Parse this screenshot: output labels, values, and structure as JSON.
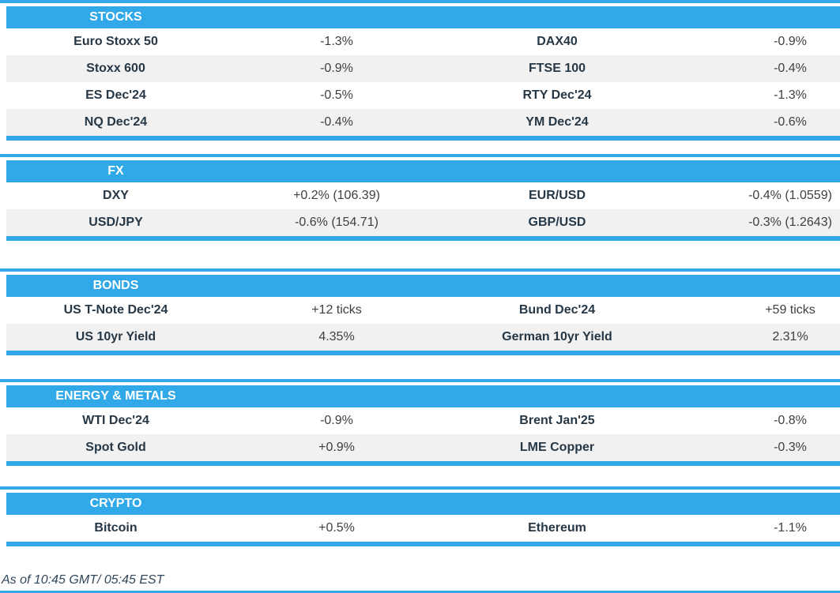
{
  "colors": {
    "accent": "#31A9E8",
    "row_alt": "#F1F1F1",
    "name_text": "#263746",
    "value_text": "#3F3F3F",
    "header_text": "#FFFFFF",
    "footer_text": "#33475B"
  },
  "sections": [
    {
      "title": "STOCKS",
      "rows": [
        [
          "Euro Stoxx 50",
          "-1.3%",
          "DAX40",
          "-0.9%"
        ],
        [
          "Stoxx 600",
          "-0.9%",
          "FTSE 100",
          "-0.4%"
        ],
        [
          "ES Dec'24",
          "-0.5%",
          "RTY Dec'24",
          "-1.3%"
        ],
        [
          "NQ Dec'24",
          "-0.4%",
          "YM Dec'24",
          "-0.6%"
        ]
      ]
    },
    {
      "title": "FX",
      "rows": [
        [
          "DXY",
          "+0.2% (106.39)",
          "EUR/USD",
          "-0.4% (1.0559)"
        ],
        [
          "USD/JPY",
          "-0.6% (154.71)",
          "GBP/USD",
          "-0.3% (1.2643)"
        ]
      ]
    },
    {
      "title": "BONDS",
      "rows": [
        [
          "US T-Note Dec'24",
          "+12 ticks",
          "Bund Dec'24",
          "+59 ticks"
        ],
        [
          "US 10yr Yield",
          "4.35%",
          "German 10yr Yield",
          "2.31%"
        ]
      ]
    },
    {
      "title": "ENERGY & METALS",
      "rows": [
        [
          "WTI Dec'24",
          "-0.9%",
          "Brent Jan'25",
          "-0.8%"
        ],
        [
          "Spot Gold",
          "+0.9%",
          "LME Copper",
          "-0.3%"
        ]
      ]
    },
    {
      "title": "CRYPTO",
      "rows": [
        [
          "Bitcoin",
          "+0.5%",
          "Ethereum",
          "-1.1%"
        ]
      ]
    }
  ],
  "footer": {
    "as_of": "As of 10:45 GMT/ 05:45 EST"
  }
}
